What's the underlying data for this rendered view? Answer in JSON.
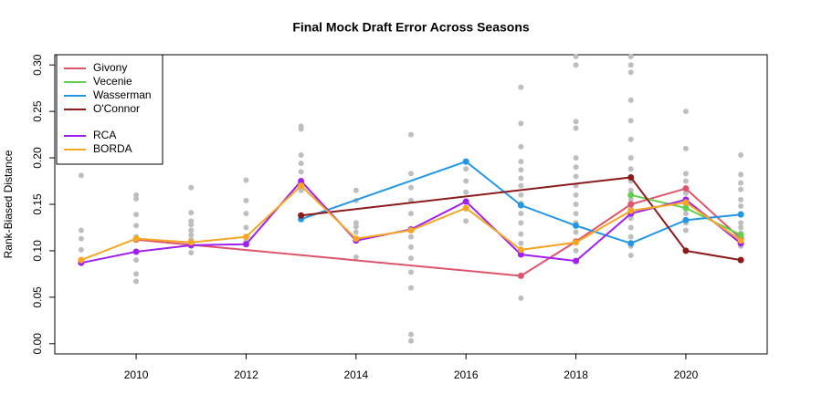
{
  "chart_data": {
    "type": "line",
    "title": "Final Mock Draft Error Across Seasons",
    "y_label": "Rank-Biased Distance",
    "xlim": [
      2008.52,
      2021.48
    ],
    "xticks": [
      2010,
      2012,
      2014,
      2016,
      2018,
      2020
    ],
    "ylim": [
      -0.011,
      0.311
    ],
    "yticks": [
      {
        "value": 0,
        "label": "0.00"
      },
      0.05,
      {
        "value": 0.1,
        "label": "0.10"
      },
      0.15,
      {
        "value": 0.2,
        "label": "0.20"
      },
      0.25,
      {
        "value": 0.3,
        "label": "0.30"
      }
    ],
    "legend": "topleft",
    "background": {
      "color": "#bebebe",
      "x": [
        2009,
        2009,
        2009,
        2009,
        2010,
        2010,
        2010,
        2010,
        2010,
        2010,
        2010,
        2010,
        2011,
        2011,
        2011,
        2011,
        2011,
        2011,
        2011,
        2011,
        2011,
        2012,
        2012,
        2012,
        2012,
        2012,
        2013,
        2013,
        2013,
        2013,
        2013,
        2013,
        2014,
        2014,
        2014,
        2014,
        2014,
        2014,
        2015,
        2015,
        2015,
        2015,
        2015,
        2015,
        2015,
        2015,
        2015,
        2015,
        2015,
        2015,
        2016,
        2016,
        2016,
        2016,
        2016,
        2017,
        2017,
        2017,
        2017,
        2017,
        2017,
        2017,
        2017,
        2017,
        2017,
        2017,
        2017,
        2017,
        2017,
        2017,
        2018,
        2018,
        2018,
        2018,
        2018,
        2018,
        2018,
        2018,
        2018,
        2018,
        2018,
        2018,
        2018,
        2018,
        2018,
        2019,
        2019,
        2019,
        2019,
        2019,
        2019,
        2019,
        2019,
        2019,
        2019,
        2019,
        2019,
        2019,
        2019,
        2019,
        2019,
        2019,
        2020,
        2020,
        2020,
        2020,
        2020,
        2020,
        2020,
        2020,
        2020,
        2021,
        2021,
        2021,
        2021,
        2021,
        2021,
        2021,
        2021,
        2021,
        2021,
        2021
      ],
      "values": [
        0.181,
        0.122,
        0.113,
        0.101,
        0.16,
        0.156,
        0.139,
        0.127,
        0.115,
        0.09,
        0.075,
        0.067,
        0.168,
        0.141,
        0.132,
        0.128,
        0.122,
        0.117,
        0.112,
        0.105,
        0.098,
        0.176,
        0.154,
        0.14,
        0.125,
        0.11,
        0.234,
        0.231,
        0.203,
        0.194,
        0.185,
        0.165,
        0.165,
        0.154,
        0.13,
        0.126,
        0.12,
        0.093,
        0.225,
        0.183,
        0.168,
        0.154,
        0.14,
        0.115,
        0.104,
        0.092,
        0.077,
        0.06,
        0.01,
        0.003,
        0.188,
        0.175,
        0.163,
        0.145,
        0.132,
        0.276,
        0.237,
        0.212,
        0.196,
        0.187,
        0.178,
        0.17,
        0.16,
        0.151,
        0.14,
        0.13,
        0.118,
        0.108,
        0.097,
        0.049,
        0.309,
        0.3,
        0.239,
        0.232,
        0.2,
        0.19,
        0.18,
        0.17,
        0.16,
        0.15,
        0.14,
        0.13,
        0.12,
        0.11,
        0.1,
        0.309,
        0.3,
        0.292,
        0.262,
        0.24,
        0.22,
        0.2,
        0.188,
        0.175,
        0.165,
        0.155,
        0.145,
        0.135,
        0.125,
        0.115,
        0.105,
        0.095,
        0.25,
        0.21,
        0.183,
        0.175,
        0.162,
        0.15,
        0.14,
        0.13,
        0.122,
        0.203,
        0.182,
        0.173,
        0.166,
        0.155,
        0.148,
        0.14,
        0.13,
        0.125,
        0.119,
        0.105
      ]
    },
    "series": [
      {
        "name": "Givony",
        "color": "#df536b",
        "x": [
          2010,
          2017,
          2018,
          2019,
          2020,
          2021
        ],
        "values": [
          0.112,
          0.073,
          0.11,
          0.15,
          0.167,
          0.113
        ]
      },
      {
        "name": "Vecenie",
        "color": "#61d04f",
        "x": [
          2019,
          2020,
          2021
        ],
        "values": [
          0.16,
          0.146,
          0.117
        ]
      },
      {
        "name": "Wasserman",
        "color": "#2297e6",
        "x": [
          2013,
          2016,
          2017,
          2018,
          2019,
          2020,
          2021
        ],
        "values": [
          0.134,
          0.196,
          0.149,
          0.127,
          0.108,
          0.133,
          0.139
        ]
      },
      {
        "name": "O'Connor",
        "color": "#8b1a1a",
        "x": [
          2013,
          2019,
          2020,
          2021
        ],
        "values": [
          0.138,
          0.179,
          0.1,
          0.09
        ]
      },
      {
        "name": "RCA",
        "color": "#a020f0",
        "x": [
          2009,
          2010,
          2011,
          2012,
          2013,
          2014,
          2015,
          2016,
          2017,
          2018,
          2019,
          2020,
          2021
        ],
        "values": [
          0.087,
          0.099,
          0.106,
          0.107,
          0.175,
          0.111,
          0.123,
          0.153,
          0.096,
          0.089,
          0.14,
          0.155,
          0.108
        ]
      },
      {
        "name": "BORDA",
        "color": "#f5a623",
        "x": [
          2009,
          2010,
          2011,
          2012,
          2013,
          2014,
          2015,
          2016,
          2017,
          2018,
          2019,
          2020,
          2021
        ],
        "values": [
          0.09,
          0.113,
          0.109,
          0.115,
          0.17,
          0.113,
          0.122,
          0.146,
          0.101,
          0.109,
          0.143,
          0.152,
          0.111
        ]
      }
    ]
  }
}
